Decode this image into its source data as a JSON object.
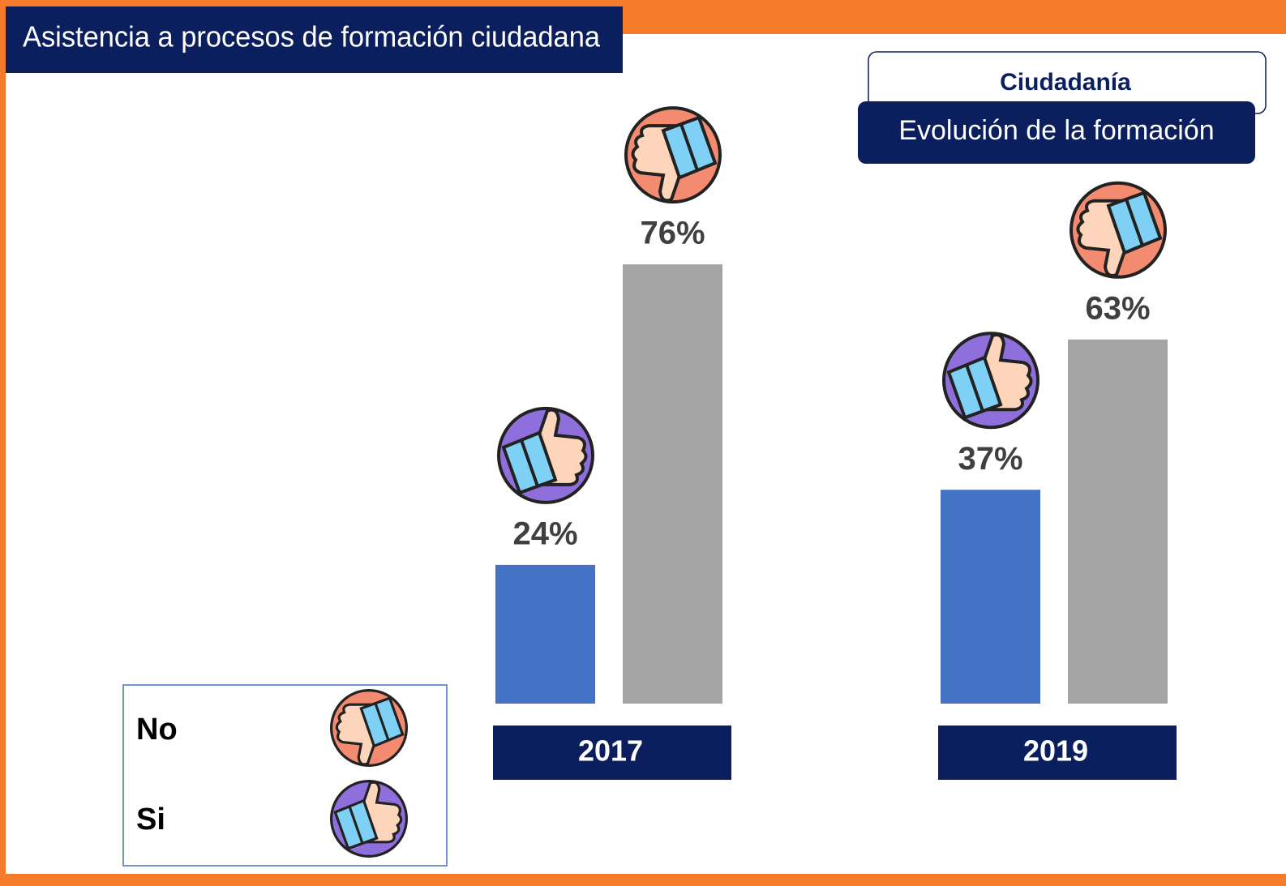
{
  "chart_data": {
    "type": "bar",
    "title": "Asistencia a procesos de formación ciudadana",
    "subtitle": "Ciudadanía",
    "caption": "Evolución de la formación",
    "categories": [
      "2017",
      "2019"
    ],
    "series": [
      {
        "name": "Si",
        "color": "#4472c4",
        "values": [
          24,
          37
        ],
        "value_labels": [
          "24%",
          "37%"
        ]
      },
      {
        "name": "No",
        "color": "#a5a5a5",
        "values": [
          76,
          63
        ],
        "value_labels": [
          "76%",
          "63%"
        ]
      }
    ]
  }
}
